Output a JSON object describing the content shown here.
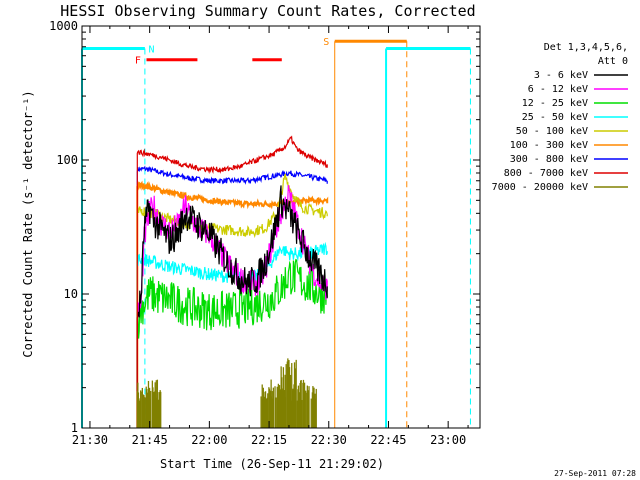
{
  "chart_data": {
    "type": "line",
    "title": "HESSI Observing Summary Count Rates, Corrected",
    "xlabel": "Start Time (26-Sep-11 21:29:02)",
    "ylabel": "Corrected Count Rate (s⁻¹ detector⁻¹)",
    "yscale": "log",
    "ylim": [
      1,
      1000
    ],
    "xlim_minutes_after_2130": [
      -2,
      98
    ],
    "x_tick_labels": [
      "21:30",
      "21:45",
      "22:00",
      "22:15",
      "22:30",
      "22:45",
      "23:00"
    ],
    "x_ticks": [
      0,
      15,
      30,
      45,
      60,
      75,
      90
    ],
    "y_tick_labels": [
      "1",
      "10",
      "100",
      "1000"
    ],
    "y_ticks": [
      1,
      10,
      100,
      1000
    ],
    "legend_title": [
      "Det 1,3,4,5,6,",
      "Att 0"
    ],
    "legend_position": "right",
    "series": [
      {
        "name": "3 - 6 keV",
        "color": "#000000",
        "noise": 0.12,
        "points": [
          [
            11.9,
            7
          ],
          [
            12.8,
            9
          ],
          [
            13.6,
            30
          ],
          [
            14.9,
            45
          ],
          [
            16,
            35
          ],
          [
            18,
            30
          ],
          [
            20,
            25
          ],
          [
            22,
            28
          ],
          [
            24,
            40
          ],
          [
            26,
            35
          ],
          [
            28,
            32
          ],
          [
            30,
            28
          ],
          [
            32,
            22
          ],
          [
            34,
            18
          ],
          [
            36,
            15
          ],
          [
            38,
            13
          ],
          [
            40,
            12
          ],
          [
            42,
            13
          ],
          [
            44,
            17
          ],
          [
            46,
            27
          ],
          [
            48,
            50
          ],
          [
            50,
            40
          ],
          [
            52,
            30
          ],
          [
            54,
            22
          ],
          [
            56,
            17
          ],
          [
            58,
            14
          ],
          [
            59.6,
            12
          ]
        ]
      },
      {
        "name": "6 - 12 keV",
        "color": "#ff00ff",
        "noise": 0.1,
        "points": [
          [
            11.9,
            7
          ],
          [
            12.8,
            8
          ],
          [
            13.6,
            25
          ],
          [
            14.9,
            40
          ],
          [
            16,
            45
          ],
          [
            18,
            33
          ],
          [
            20,
            30
          ],
          [
            22,
            32
          ],
          [
            24,
            45
          ],
          [
            26,
            35
          ],
          [
            28,
            30
          ],
          [
            30,
            28
          ],
          [
            32,
            22
          ],
          [
            34,
            18
          ],
          [
            36,
            15
          ],
          [
            38,
            13
          ],
          [
            40,
            12
          ],
          [
            42,
            12
          ],
          [
            44,
            15
          ],
          [
            46,
            25
          ],
          [
            48,
            40
          ],
          [
            50,
            55
          ],
          [
            52,
            35
          ],
          [
            54,
            22
          ],
          [
            56,
            15
          ],
          [
            58,
            12
          ],
          [
            59.6,
            11
          ]
        ]
      },
      {
        "name": "12 - 25 keV",
        "color": "#00dd00",
        "noise": 0.15,
        "points": [
          [
            11.9,
            6
          ],
          [
            13,
            8
          ],
          [
            15,
            10
          ],
          [
            20,
            9
          ],
          [
            25,
            8
          ],
          [
            30,
            7.5
          ],
          [
            35,
            7.5
          ],
          [
            40,
            8
          ],
          [
            45,
            9
          ],
          [
            48,
            11
          ],
          [
            50,
            14
          ],
          [
            52,
            13
          ],
          [
            54,
            12
          ],
          [
            56,
            11
          ],
          [
            58,
            10
          ],
          [
            59.6,
            10
          ]
        ]
      },
      {
        "name": "25 - 50 keV",
        "color": "#00ffff",
        "noise": 0.05,
        "points": [
          [
            11.9,
            18
          ],
          [
            14,
            18
          ],
          [
            20,
            16
          ],
          [
            25,
            15
          ],
          [
            30,
            14
          ],
          [
            35,
            13.5
          ],
          [
            40,
            13
          ],
          [
            43,
            14
          ],
          [
            46,
            18
          ],
          [
            48,
            22
          ],
          [
            50,
            20
          ],
          [
            52,
            20
          ],
          [
            55,
            20
          ],
          [
            59.6,
            22
          ]
        ]
      },
      {
        "name": "50 - 100 keV",
        "color": "#cccc00",
        "noise": 0.04,
        "points": [
          [
            11.9,
            40
          ],
          [
            13,
            42
          ],
          [
            16,
            40
          ],
          [
            20,
            36
          ],
          [
            25,
            33
          ],
          [
            30,
            31
          ],
          [
            35,
            30
          ],
          [
            40,
            29
          ],
          [
            44,
            31
          ],
          [
            47,
            40
          ],
          [
            49,
            75
          ],
          [
            51,
            55
          ],
          [
            53,
            45
          ],
          [
            56,
            42
          ],
          [
            59.6,
            40
          ]
        ]
      },
      {
        "name": "100 - 300 keV",
        "color": "#ff8800",
        "noise": 0.02,
        "points": [
          [
            11.9,
            65
          ],
          [
            14,
            64
          ],
          [
            20,
            57
          ],
          [
            25,
            53
          ],
          [
            30,
            50
          ],
          [
            35,
            48
          ],
          [
            40,
            47
          ],
          [
            45,
            47
          ],
          [
            50,
            48
          ],
          [
            55,
            50
          ],
          [
            59.6,
            50
          ]
        ]
      },
      {
        "name": "300 - 800 keV",
        "color": "#0000ff",
        "noise": 0.02,
        "points": [
          [
            11.9,
            85
          ],
          [
            14,
            86
          ],
          [
            20,
            78
          ],
          [
            25,
            73
          ],
          [
            30,
            70
          ],
          [
            35,
            70
          ],
          [
            40,
            70
          ],
          [
            45,
            75
          ],
          [
            50,
            80
          ],
          [
            55,
            75
          ],
          [
            59.6,
            70
          ]
        ]
      },
      {
        "name": "800 - 7000 keV",
        "color": "#dd0000",
        "noise": 0.02,
        "points": [
          [
            11.9,
            115
          ],
          [
            14,
            112
          ],
          [
            18,
            105
          ],
          [
            22,
            95
          ],
          [
            26,
            88
          ],
          [
            30,
            85
          ],
          [
            34,
            85
          ],
          [
            38,
            90
          ],
          [
            42,
            100
          ],
          [
            46,
            110
          ],
          [
            49,
            125
          ],
          [
            50.5,
            145
          ],
          [
            52,
            120
          ],
          [
            55,
            105
          ],
          [
            59.6,
            92
          ]
        ]
      },
      {
        "name": "7000 - 20000 keV",
        "color": "#808000",
        "noise": 0,
        "points": []
      }
    ],
    "flags": {
      "saa_level": 680,
      "saa_color": "#00ffff",
      "saa_segments": [
        [
          -2,
          13.8
        ],
        [
          74.4,
          95.6
        ]
      ],
      "saa_label": "N",
      "night_dashed_x": [
        13.8,
        95.6
      ],
      "flare_label": "F",
      "flare_color": "#ff0000",
      "flare_level": 560,
      "flare_segments": [
        [
          14.2,
          27
        ],
        [
          40.8,
          48.2
        ]
      ],
      "s_label": "S",
      "s_color": "#ff8800",
      "s_level": 770,
      "s_segment": [
        61.5,
        79.6
      ],
      "s_dashed_x": 79.6,
      "s_solid_x": 61.5
    }
  },
  "timestamp": "27-Sep-2011 07:28"
}
